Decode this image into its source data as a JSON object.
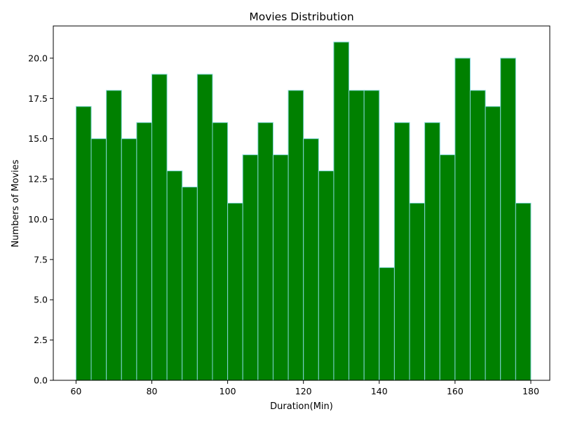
{
  "chart_data": {
    "type": "bar",
    "title": "Movies Distribution",
    "xlabel": "Duration(Min)",
    "ylabel": "Numbers of Movies",
    "bin_edges": [
      60,
      64,
      68,
      72,
      76,
      80,
      84,
      88,
      92,
      96,
      100,
      104,
      108,
      112,
      116,
      120,
      124,
      128,
      132,
      136,
      140,
      144,
      148,
      152,
      156,
      160,
      164,
      168,
      172,
      176,
      180
    ],
    "values": [
      17,
      15,
      18,
      15,
      16,
      19,
      13,
      12,
      19,
      16,
      11,
      14,
      16,
      14,
      18,
      15,
      13,
      21,
      18,
      18,
      7,
      16,
      11,
      16,
      14,
      20,
      18,
      17,
      20,
      11
    ],
    "xlim": [
      54,
      185
    ],
    "ylim": [
      0,
      22
    ],
    "x_ticks": [
      "60",
      "80",
      "100",
      "120",
      "140",
      "160",
      "180"
    ],
    "y_ticks": [
      "0.0",
      "2.5",
      "5.0",
      "7.5",
      "10.0",
      "12.5",
      "15.0",
      "17.5",
      "20.0"
    ],
    "bar_color": "#008000",
    "bar_edge_color": "#7fd4d4",
    "grid": false,
    "legend": "none"
  }
}
